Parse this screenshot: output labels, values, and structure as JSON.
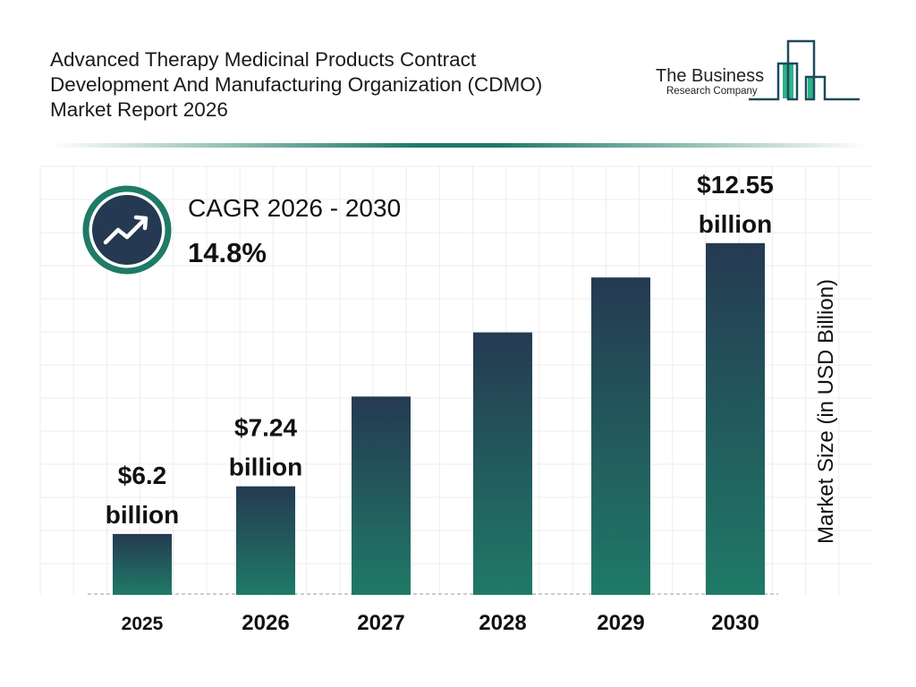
{
  "header": {
    "title_lines": [
      "Advanced Therapy Medicinal Products Contract",
      "Development And Manufacturing Organization (CDMO)",
      "Market Report 2026"
    ]
  },
  "logo": {
    "line1": "The Business",
    "line2": "Research Company"
  },
  "cagr": {
    "title": "CAGR 2026 - 2030",
    "value": "14.8%",
    "icon": "trending-up-icon"
  },
  "colors": {
    "bar_top": "#253a52",
    "bar_bottom": "#1f7a67",
    "accent": "#1f7a67"
  },
  "chart_data": {
    "type": "bar",
    "categories": [
      "2025",
      "2026",
      "2027",
      "2028",
      "2029",
      "2030"
    ],
    "values": [
      6.2,
      7.24,
      9.2,
      10.6,
      11.8,
      12.55
    ],
    "data_labels": [
      [
        "$6.2",
        "billion"
      ],
      [
        "$7.24",
        "billion"
      ],
      null,
      null,
      null,
      [
        "$12.55",
        "billion"
      ]
    ],
    "xlabel": "",
    "ylabel": "Market Size (in USD Billion)",
    "grid": true
  }
}
